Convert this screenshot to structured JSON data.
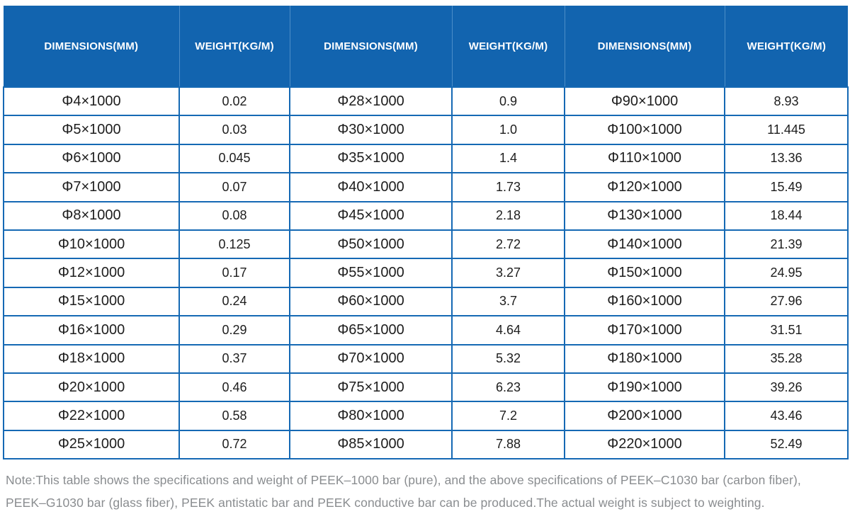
{
  "table": {
    "header_labels": [
      "DIMENSIONS(MM)",
      "WEIGHT(KG/M)",
      "DIMENSIONS(MM)",
      "WEIGHT(KG/M)",
      "DIMENSIONS(MM)",
      "WEIGHT(KG/M)"
    ],
    "rows": [
      [
        "Φ4×1000",
        "0.02",
        "Φ28×1000",
        "0.9",
        "Φ90×1000",
        "8.93"
      ],
      [
        "Φ5×1000",
        "0.03",
        "Φ30×1000",
        "1.0",
        "Φ100×1000",
        "11.445"
      ],
      [
        "Φ6×1000",
        "0.045",
        "Φ35×1000",
        "1.4",
        "Φ110×1000",
        "13.36"
      ],
      [
        "Φ7×1000",
        "0.07",
        "Φ40×1000",
        "1.73",
        "Φ120×1000",
        "15.49"
      ],
      [
        "Φ8×1000",
        "0.08",
        "Φ45×1000",
        "2.18",
        "Φ130×1000",
        "18.44"
      ],
      [
        "Φ10×1000",
        "0.125",
        "Φ50×1000",
        "2.72",
        "Φ140×1000",
        "21.39"
      ],
      [
        "Φ12×1000",
        "0.17",
        "Φ55×1000",
        "3.27",
        "Φ150×1000",
        "24.95"
      ],
      [
        "Φ15×1000",
        "0.24",
        "Φ60×1000",
        "3.7",
        "Φ160×1000",
        "27.96"
      ],
      [
        "Φ16×1000",
        "0.29",
        "Φ65×1000",
        "4.64",
        "Φ170×1000",
        "31.51"
      ],
      [
        "Φ18×1000",
        "0.37",
        "Φ70×1000",
        "5.32",
        "Φ180×1000",
        "35.28"
      ],
      [
        "Φ20×1000",
        "0.46",
        "Φ75×1000",
        "6.23",
        "Φ190×1000",
        "39.26"
      ],
      [
        "Φ22×1000",
        "0.58",
        "Φ80×1000",
        "7.2",
        "Φ200×1000",
        "43.46"
      ],
      [
        "Φ25×1000",
        "0.72",
        "Φ85×1000",
        "7.88",
        "Φ220×1000",
        "52.49"
      ]
    ]
  },
  "note": "Note:This table shows the specifications and weight of PEEK–1000 bar (pure), and the above specifications of PEEK–C1030 bar (carbon fiber), PEEK–G1030 bar (glass fiber), PEEK antistatic bar and PEEK conductive bar can be produced.The actual weight is subject to weighting.",
  "colors": {
    "header_bg": "#1264af",
    "cell_border": "#1569b4",
    "header_divider": "#4c8ec8",
    "body_text": "#1d1d1d",
    "note_text": "#8a8d90"
  }
}
